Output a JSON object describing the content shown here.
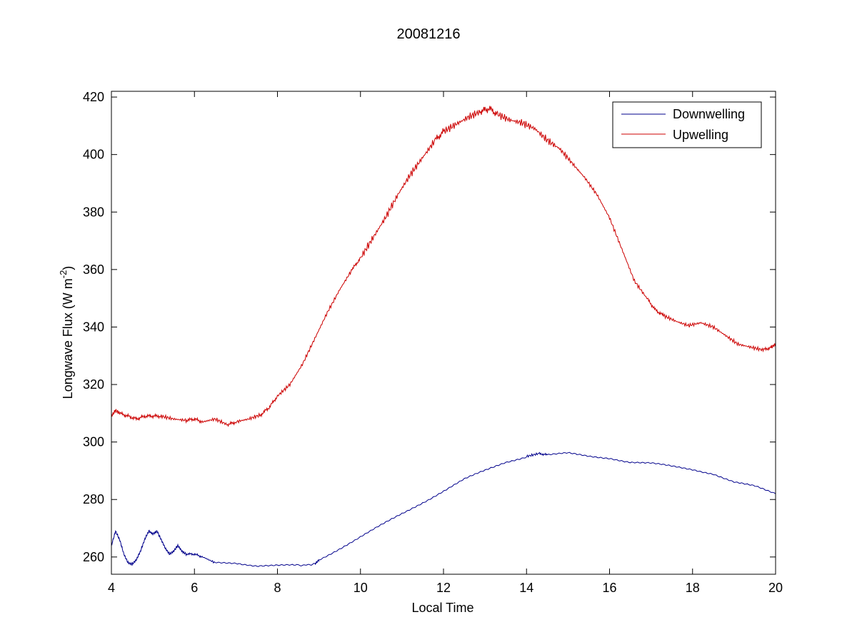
{
  "chart_data": {
    "type": "line",
    "title": "20081216",
    "xlabel": "Local Time",
    "ylabel": {
      "prefix": "Longwave Flux (W m",
      "superscript": "-2",
      "suffix": ")"
    },
    "xlim": [
      4,
      20
    ],
    "ylim": [
      254,
      422
    ],
    "xticks": [
      4,
      6,
      8,
      10,
      12,
      14,
      16,
      18,
      20
    ],
    "yticks": [
      260,
      280,
      300,
      320,
      340,
      360,
      380,
      400,
      420
    ],
    "grid": false,
    "legend_position": "top-right",
    "series": [
      {
        "name": "Downwelling",
        "color": "#00008b",
        "x": [
          4.0,
          4.1,
          4.2,
          4.3,
          4.4,
          4.5,
          4.6,
          4.7,
          4.8,
          4.9,
          5.0,
          5.1,
          5.2,
          5.3,
          5.4,
          5.5,
          5.6,
          5.7,
          5.8,
          6.0,
          6.2,
          6.5,
          7.0,
          7.5,
          8.0,
          8.5,
          8.9,
          9.0,
          9.5,
          10.0,
          10.5,
          11.0,
          11.5,
          12.0,
          12.5,
          13.0,
          13.5,
          14.0,
          14.3,
          14.5,
          15.0,
          15.5,
          16.0,
          16.5,
          17.0,
          17.5,
          18.0,
          18.5,
          19.0,
          19.5,
          20.0
        ],
        "y": [
          264,
          269,
          266,
          261,
          258,
          257.5,
          259,
          262,
          266,
          269,
          268,
          269,
          266,
          263,
          261,
          262,
          264,
          262,
          261,
          261,
          260,
          258,
          258,
          257,
          257,
          257,
          257.5,
          259,
          263,
          267,
          271,
          275,
          279,
          283,
          287,
          290,
          293,
          295,
          296,
          295.5,
          296,
          295,
          294.5,
          293,
          292.5,
          291.5,
          290.5,
          289,
          286,
          284.5,
          282
        ]
      },
      {
        "name": "Upwelling",
        "color": "#cc0000",
        "x": [
          4.0,
          4.1,
          4.2,
          4.4,
          4.6,
          4.8,
          5.0,
          5.2,
          5.5,
          5.8,
          6.0,
          6.2,
          6.5,
          6.8,
          7.0,
          7.3,
          7.6,
          7.8,
          8.0,
          8.3,
          8.6,
          8.9,
          9.2,
          9.5,
          9.8,
          10.0,
          10.3,
          10.6,
          10.9,
          11.2,
          11.5,
          11.8,
          12.0,
          12.3,
          12.6,
          12.9,
          13.1,
          13.3,
          13.6,
          13.9,
          14.2,
          14.5,
          14.8,
          15.1,
          15.4,
          15.7,
          16.0,
          16.3,
          16.6,
          16.9,
          17.1,
          17.3,
          17.6,
          17.9,
          18.2,
          18.5,
          18.8,
          19.1,
          19.4,
          19.7,
          19.9,
          20.0
        ],
        "y": [
          309,
          311,
          310,
          309,
          308,
          309,
          309,
          309,
          308,
          307.5,
          308,
          307,
          308,
          306,
          307,
          308,
          309.5,
          312,
          316,
          320,
          327,
          336,
          345,
          353,
          360,
          364,
          371,
          378,
          386,
          393,
          399,
          405,
          408,
          410.5,
          413,
          415,
          416,
          414,
          412,
          411,
          409,
          405,
          402,
          397,
          392,
          386,
          378,
          367,
          356,
          350,
          346,
          344,
          342,
          340.5,
          341.5,
          340,
          337,
          334,
          333,
          332,
          333,
          334
        ]
      }
    ]
  }
}
